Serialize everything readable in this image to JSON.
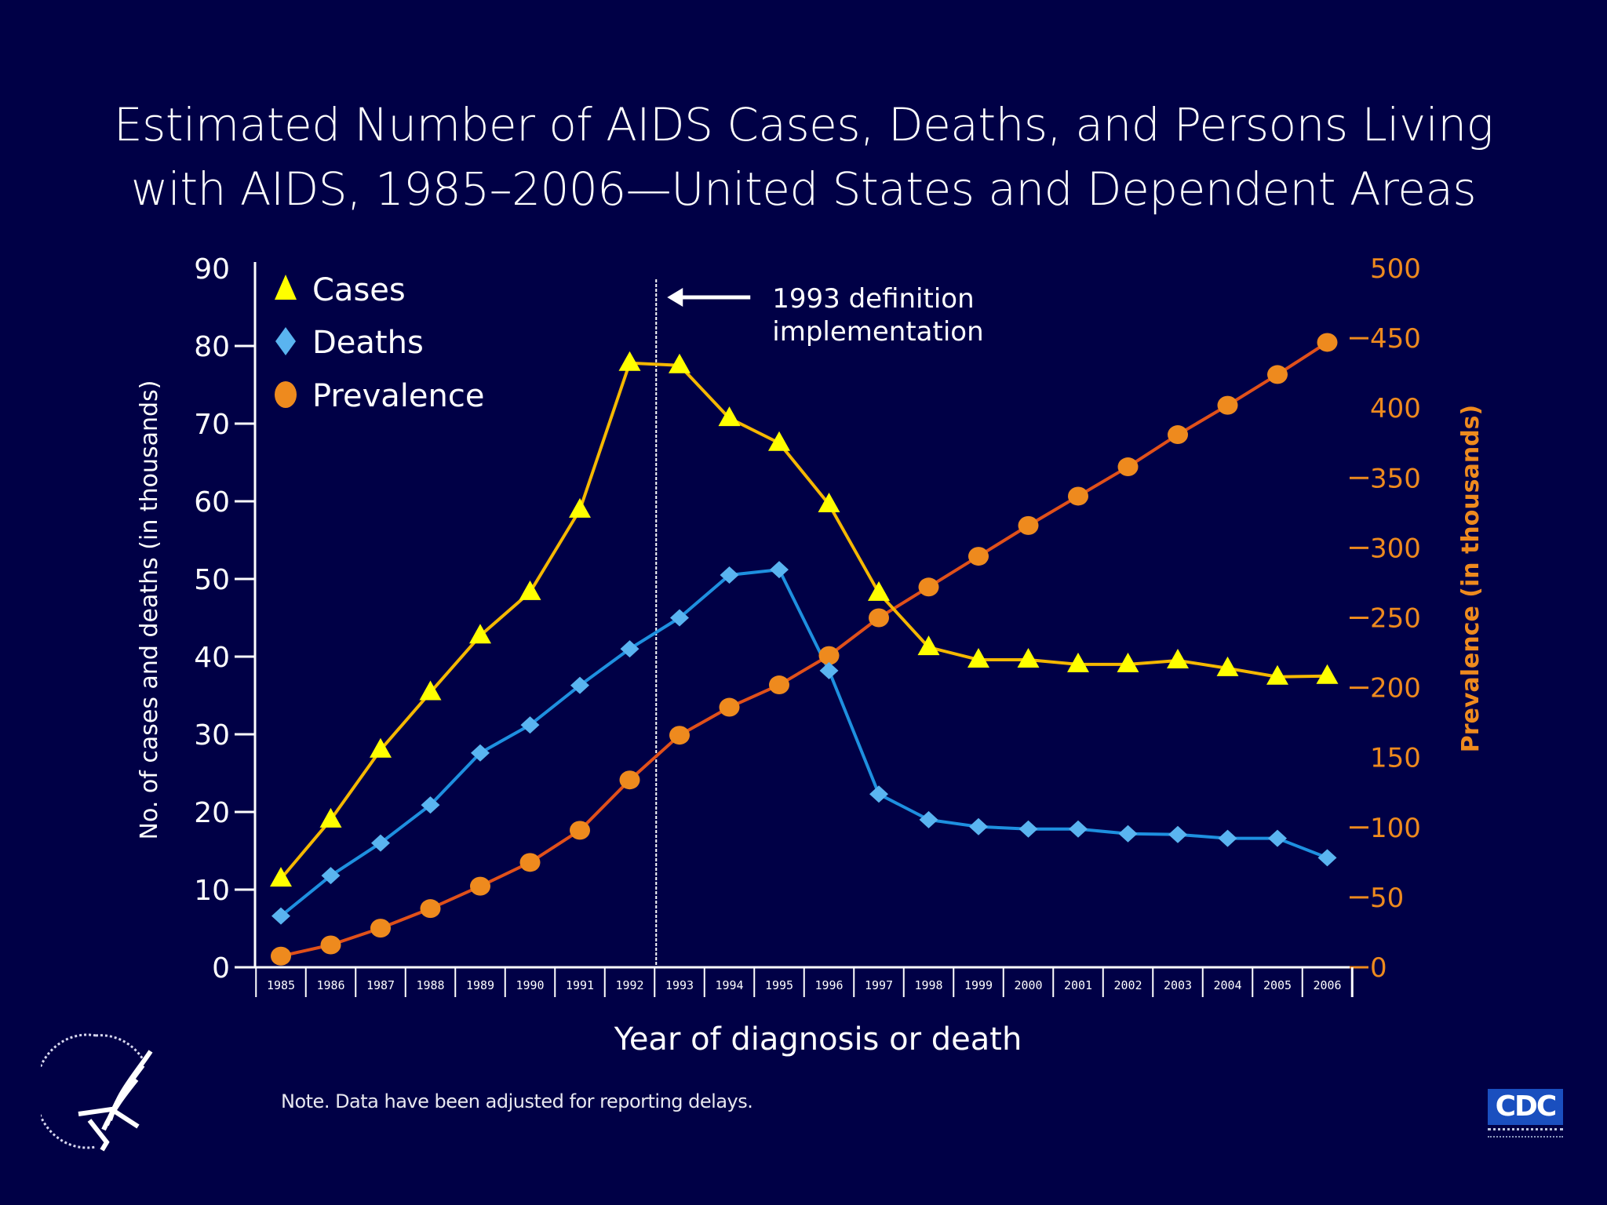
{
  "title": {
    "line1": "Estimated Number of AIDS Cases, Deaths, and Persons Living",
    "line2": "with AIDS, 1985–2006—United States and Dependent Areas"
  },
  "note": "Note. Data have been adjusted for reporting delays.",
  "logos": {
    "hhs": "hhs-eagle-logo",
    "cdc_text": "CDC"
  },
  "colors": {
    "background": "#000046",
    "cases_marker": "#ffff00",
    "cases_line": "#f5b800",
    "deaths_marker": "#5ab4f0",
    "deaths_line": "#1e90e0",
    "prevalence_marker": "#ee8a1e",
    "prevalence_line": "#e0501a",
    "right_axis": "#ee8a1e",
    "axis": "#ffffff"
  },
  "chart_data": {
    "type": "line",
    "title": "Estimated Number of AIDS Cases, Deaths, and Persons Living with AIDS, 1985–2006—United States and Dependent Areas",
    "xlabel": "Year of diagnosis or death",
    "ylabel": "No. of cases and deaths (in thousands)",
    "y2label": "Prevalence (in thousands)",
    "x": [
      "1985",
      "1986",
      "1987",
      "1988",
      "1989",
      "1990",
      "1991",
      "1992",
      "1993",
      "1994",
      "1995",
      "1996",
      "1997",
      "1998",
      "1999",
      "2000",
      "2001",
      "2002",
      "2003",
      "2004",
      "2005",
      "2006"
    ],
    "ylim": [
      0,
      90
    ],
    "y2lim": [
      0,
      500
    ],
    "yticks": [
      0,
      10,
      20,
      30,
      40,
      50,
      60,
      70,
      80,
      90
    ],
    "y2ticks": [
      0,
      50,
      100,
      150,
      200,
      250,
      300,
      350,
      400,
      450,
      500
    ],
    "grid": false,
    "legend_position": "top-left",
    "series": [
      {
        "name": "Cases",
        "axis": "left",
        "marker": "triangle",
        "values": [
          11.4,
          19.0,
          28.0,
          35.4,
          42.7,
          48.3,
          58.9,
          77.8,
          77.5,
          70.7,
          67.5,
          59.6,
          48.2,
          41.2,
          39.6,
          39.6,
          39.0,
          39.0,
          39.5,
          38.5,
          37.4,
          37.5
        ]
      },
      {
        "name": "Deaths",
        "axis": "left",
        "marker": "diamond",
        "values": [
          6.6,
          11.8,
          16.0,
          20.9,
          27.6,
          31.2,
          36.3,
          41.0,
          45.0,
          50.5,
          51.2,
          38.2,
          22.3,
          19.0,
          18.1,
          17.8,
          17.8,
          17.2,
          17.1,
          16.6,
          16.6,
          14.1
        ]
      },
      {
        "name": "Prevalence",
        "axis": "right",
        "marker": "circle",
        "values": [
          8,
          16,
          28,
          42,
          58,
          75,
          98,
          134,
          166,
          186,
          202,
          223,
          250,
          272,
          294,
          316,
          337,
          358,
          381,
          402,
          424,
          447
        ]
      }
    ],
    "annotations": [
      {
        "text_line1": "1993 definition",
        "text_line2": "implementation",
        "x_between": [
          "1992",
          "1993"
        ],
        "style": "dotted vertical line with left-pointing arrow"
      }
    ]
  }
}
